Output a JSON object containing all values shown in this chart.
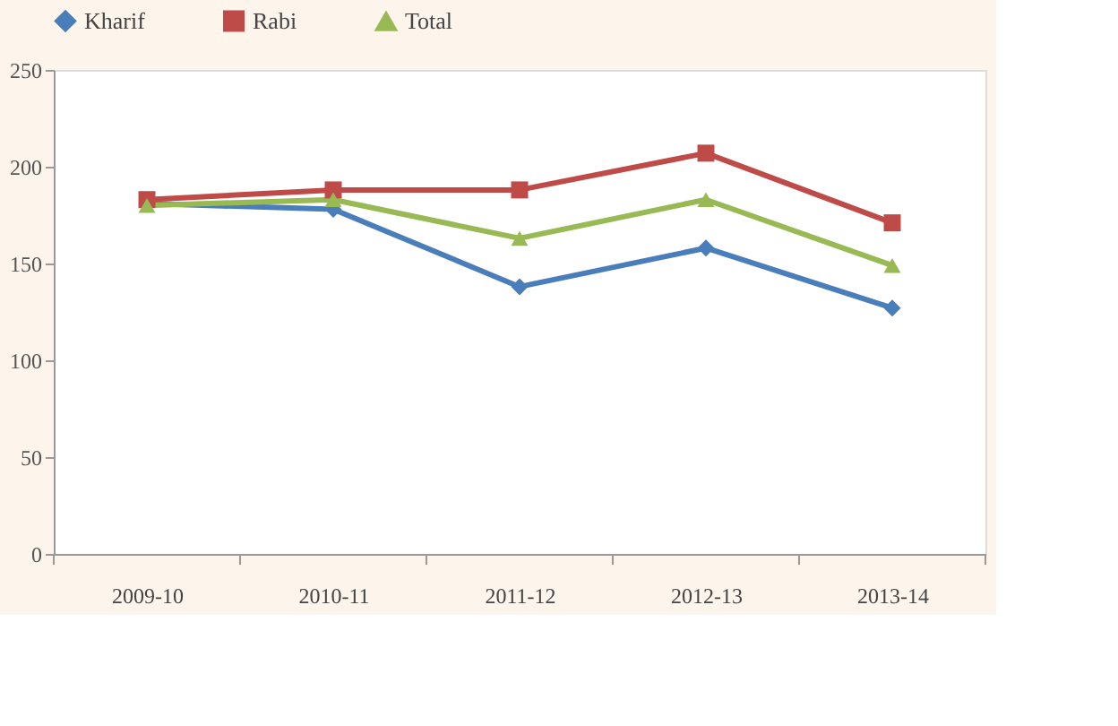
{
  "chart_data": {
    "type": "line",
    "categories": [
      "2009-10",
      "2010-11",
      "2011-12",
      "2012-13",
      "2013-14"
    ],
    "series": [
      {
        "name": "Kharif",
        "color": "#4a7ebb",
        "marker": "diamond",
        "values": [
          181,
          178,
          138,
          158,
          127
        ]
      },
      {
        "name": "Rabi",
        "color": "#be4b48",
        "marker": "square",
        "values": [
          183,
          188,
          188,
          207,
          171
        ]
      },
      {
        "name": "Total",
        "color": "#98b954",
        "marker": "triangle",
        "values": [
          180,
          183,
          163,
          183,
          149
        ]
      }
    ],
    "ylim": [
      0,
      250
    ],
    "yticks": [
      0,
      50,
      100,
      150,
      200,
      250
    ],
    "grid": false,
    "legend": "top",
    "line_style": "solid"
  }
}
